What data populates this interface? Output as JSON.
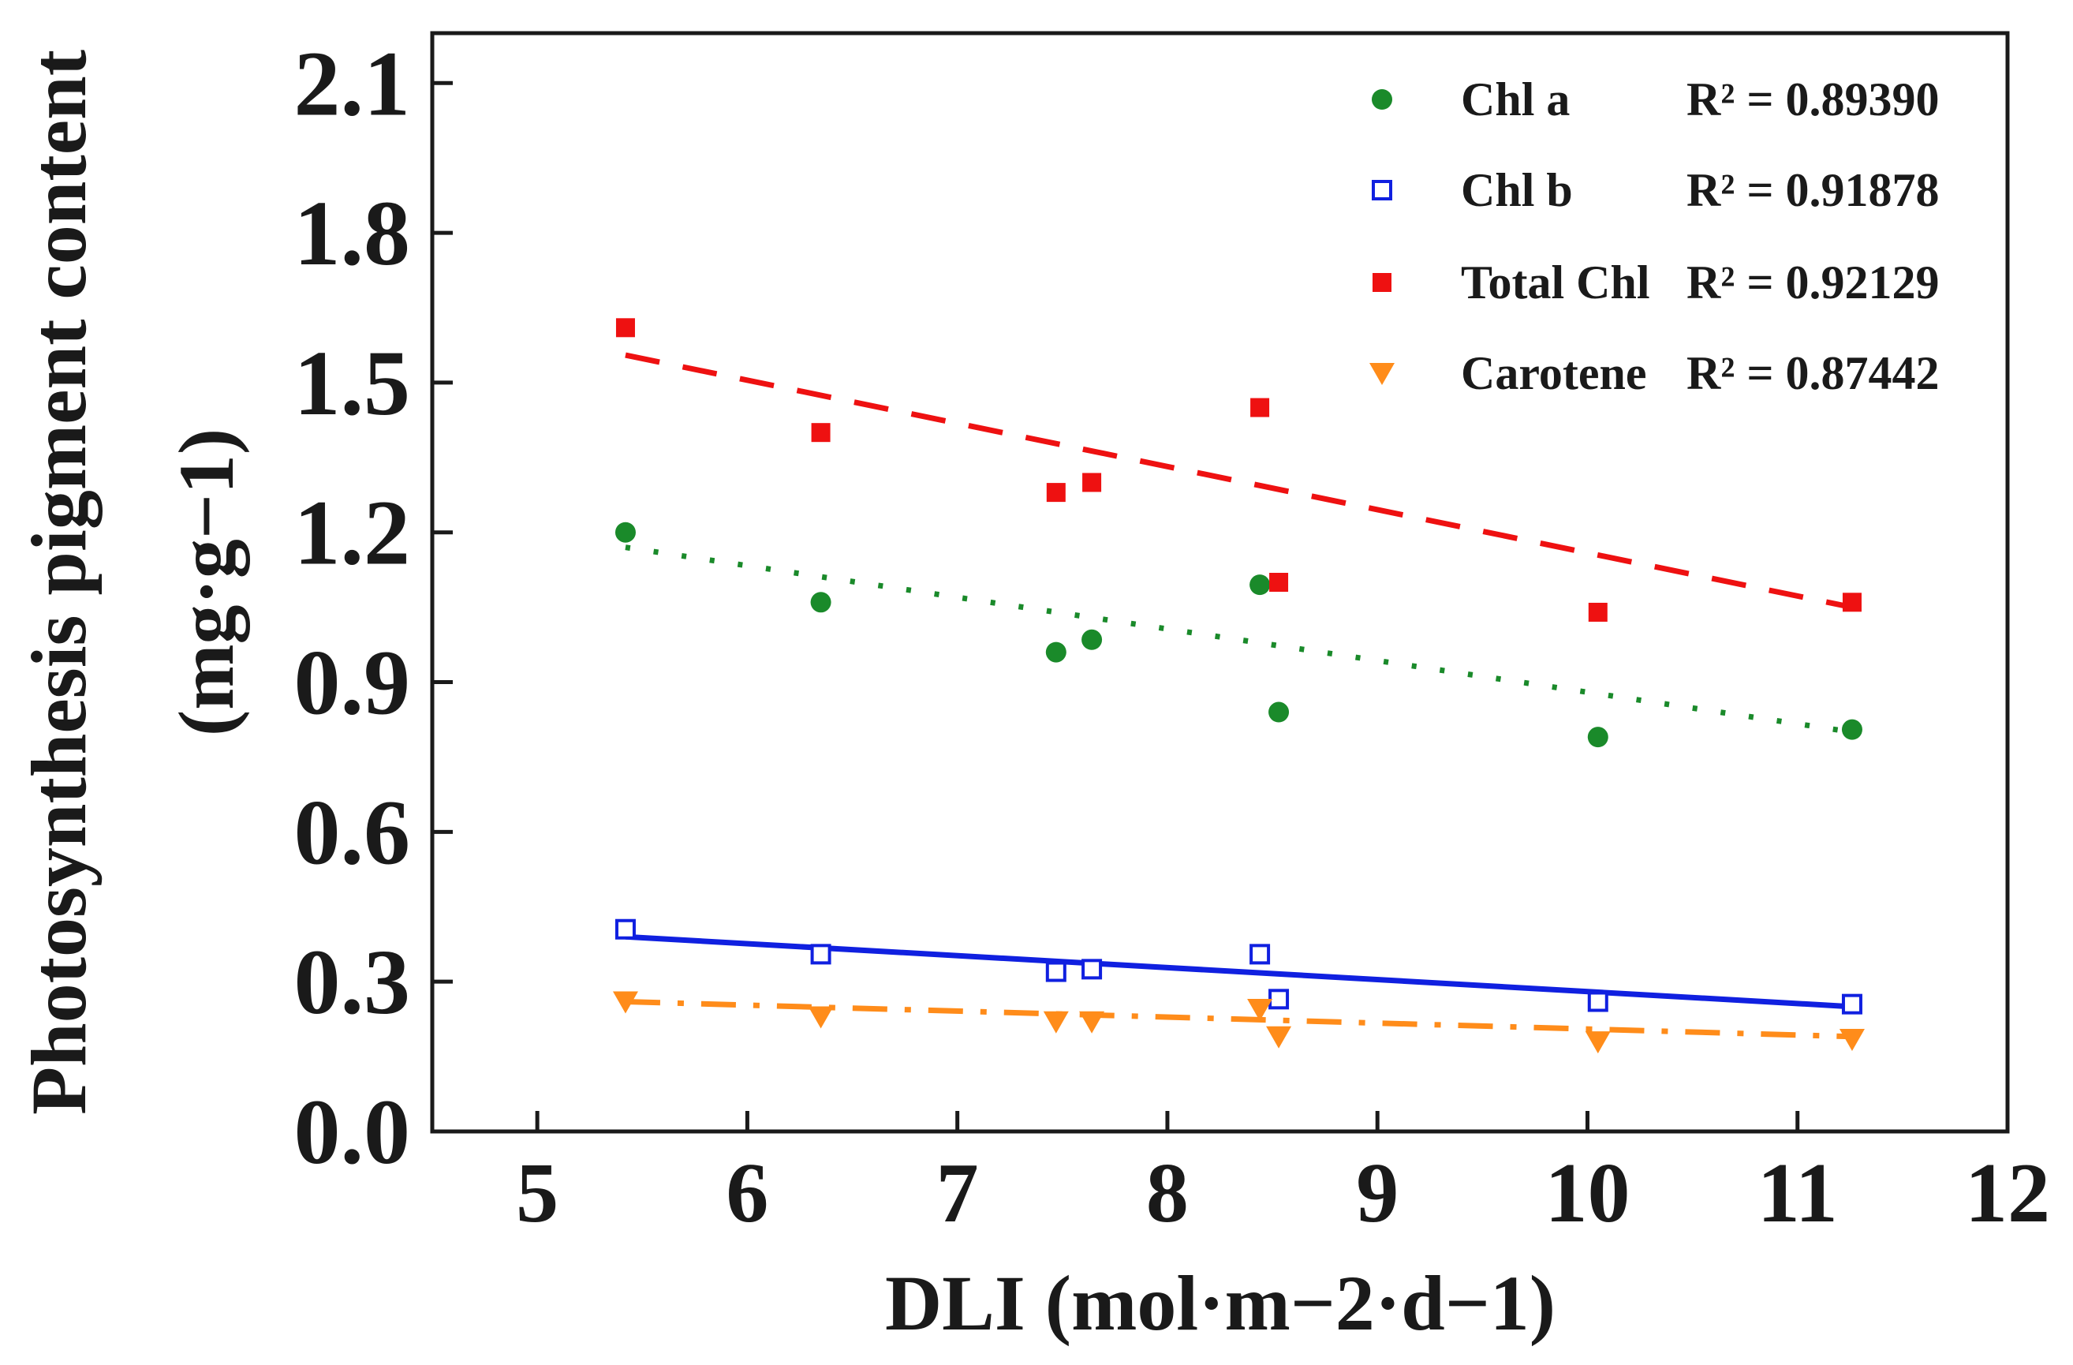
{
  "chart_data": {
    "type": "scatter",
    "title": "",
    "xlabel": "DLI (mol·m−2·d−1)",
    "ylabel": "Photosynthesis pigment content (mg·g−1)",
    "ylabel_line1": "Photosynthesis pigment content",
    "ylabel_line2": "(mg·g−1)",
    "xlim": [
      4.5,
      12
    ],
    "ylim": [
      0,
      2.2
    ],
    "x_ticks": [
      5,
      6,
      7,
      8,
      9,
      10,
      11,
      12
    ],
    "x_tick_labels": [
      "5",
      "6",
      "7",
      "8",
      "9",
      "10",
      "11",
      "12"
    ],
    "y_ticks": [
      0.0,
      0.3,
      0.6,
      0.9,
      1.2,
      1.5,
      1.8,
      2.1
    ],
    "y_tick_labels": [
      "0.0",
      "0.3",
      "0.6",
      "0.9",
      "1.2",
      "1.5",
      "1.8",
      "2.1"
    ],
    "grid": false,
    "legend_position": "top-right",
    "series": [
      {
        "name": "Chl a",
        "r2_label": "R² = 0.89390",
        "color": "#1a8a2a",
        "marker": "circle",
        "line_style": "dotted",
        "x": [
          5.42,
          6.35,
          7.47,
          7.64,
          8.44,
          8.53,
          10.05,
          11.26
        ],
        "y": [
          1.2,
          1.06,
          0.96,
          0.985,
          1.095,
          0.84,
          0.79,
          0.805
        ],
        "fit": [
          [
            5.42,
            1.17
          ],
          [
            11.26,
            0.8
          ]
        ]
      },
      {
        "name": "Chl b",
        "r2_label": "R² = 0.91878",
        "color": "#1020e0",
        "marker": "open-square",
        "line_style": "solid",
        "x": [
          5.42,
          6.35,
          7.47,
          7.64,
          8.44,
          8.53,
          10.05,
          11.26
        ],
        "y": [
          0.405,
          0.355,
          0.32,
          0.325,
          0.355,
          0.265,
          0.26,
          0.255
        ],
        "fit": [
          [
            5.42,
            0.39
          ],
          [
            11.26,
            0.25
          ]
        ]
      },
      {
        "name": "Total Chl",
        "r2_label": "R² = 0.92129",
        "color": "#ee1111",
        "marker": "square",
        "line_style": "dashed",
        "x": [
          5.42,
          6.35,
          7.47,
          7.64,
          8.44,
          8.53,
          10.05,
          11.26
        ],
        "y": [
          1.61,
          1.4,
          1.28,
          1.3,
          1.45,
          1.1,
          1.04,
          1.06
        ],
        "fit": [
          [
            5.42,
            1.555
          ],
          [
            11.26,
            1.05
          ]
        ]
      },
      {
        "name": "Carotene",
        "r2_label": "R² = 0.87442",
        "color": "#ff8c1a",
        "marker": "down-triangle",
        "line_style": "dash-dot",
        "x": [
          5.42,
          6.35,
          7.47,
          7.64,
          8.44,
          8.53,
          10.05,
          11.26
        ],
        "y": [
          0.26,
          0.23,
          0.22,
          0.22,
          0.245,
          0.19,
          0.18,
          0.185
        ],
        "fit": [
          [
            5.42,
            0.26
          ],
          [
            11.26,
            0.19
          ]
        ]
      }
    ]
  }
}
